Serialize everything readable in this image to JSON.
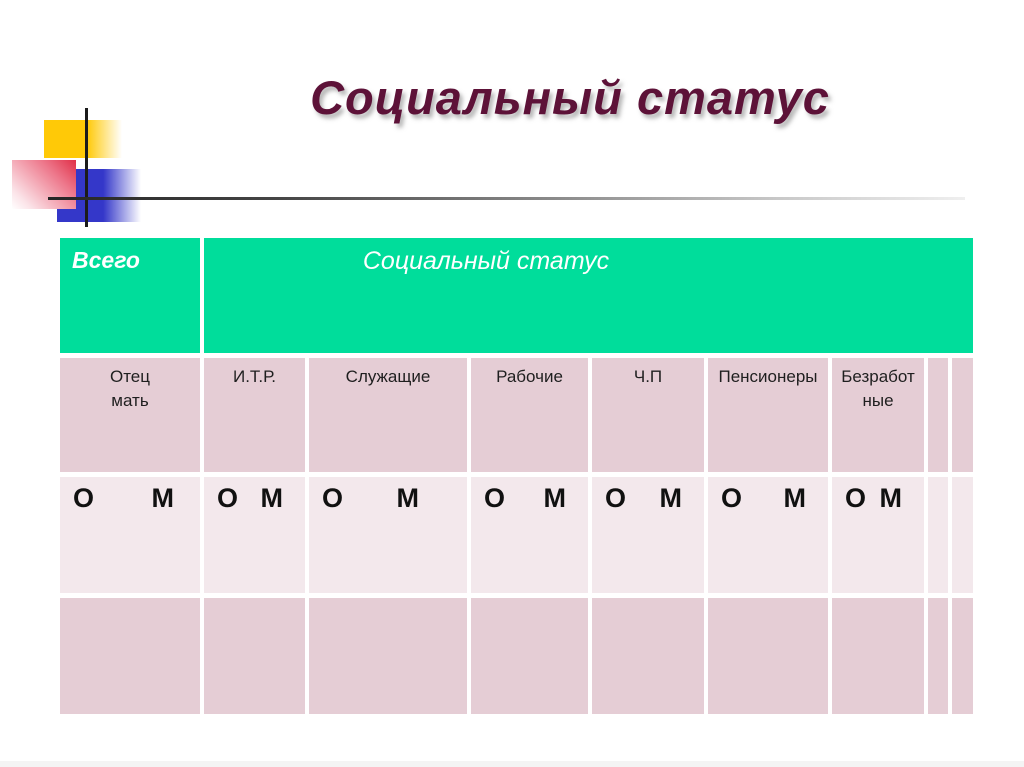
{
  "slide": {
    "title": "Социальный статус"
  },
  "table": {
    "header": {
      "total_label": "Всего",
      "span_label": "Социальный статус"
    },
    "columns": [
      "Отец\nмать",
      "И.Т.Р.",
      "Служащие",
      "Рабочие",
      "Ч.П",
      "Пенсионеры",
      "Безработ\nные"
    ],
    "om_row": [
      {
        "o": "О",
        "m": "М"
      },
      {
        "o": "О",
        "m": "М"
      },
      {
        "o": "О",
        "m": "М"
      },
      {
        "o": "О",
        "m": "М"
      },
      {
        "o": "О",
        "m": "М"
      },
      {
        "o": "О",
        "m": "М"
      },
      {
        "o": "О",
        "m": "М"
      }
    ]
  },
  "colors": {
    "header_green": "#00DD9B",
    "row_pink": "#E5CDD5",
    "row_light": "#F3E8EC",
    "title_maroon": "#5D1238",
    "accent_yellow": "#FFC907",
    "accent_blue": "#3437C9",
    "accent_pink": "#E23048"
  }
}
